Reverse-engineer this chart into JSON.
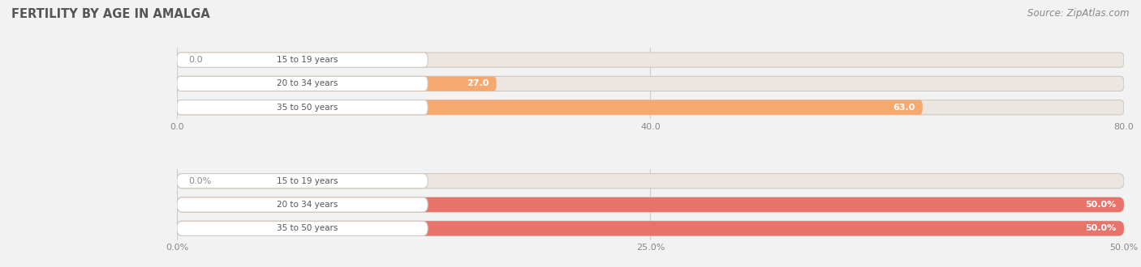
{
  "title": "FERTILITY BY AGE IN AMALGA",
  "source": "Source: ZipAtlas.com",
  "background_color": "#f2f2f2",
  "top_chart": {
    "categories": [
      "15 to 19 years",
      "20 to 34 years",
      "35 to 50 years"
    ],
    "values": [
      0.0,
      27.0,
      63.0
    ],
    "xlim": [
      0,
      80.0
    ],
    "xticks": [
      0.0,
      40.0,
      80.0
    ],
    "xtick_labels": [
      "0.0",
      "40.0",
      "80.0"
    ],
    "bar_color": "#f5a96e",
    "bar_bg_color": "#ece6e0",
    "label_bg": "#ffffff",
    "label_color": "#555555",
    "value_color_inside": "#ffffff",
    "value_color_outside": "#888888",
    "bar_height": 0.62
  },
  "bottom_chart": {
    "categories": [
      "15 to 19 years",
      "20 to 34 years",
      "35 to 50 years"
    ],
    "values": [
      0.0,
      50.0,
      50.0
    ],
    "xlim": [
      0,
      50.0
    ],
    "xticks": [
      0.0,
      25.0,
      50.0
    ],
    "xtick_labels": [
      "0.0%",
      "25.0%",
      "50.0%"
    ],
    "bar_color": "#e8736a",
    "bar_bg_color": "#ece6e0",
    "label_bg": "#ffffff",
    "label_color": "#555555",
    "value_color_inside": "#ffffff",
    "value_color_outside": "#888888",
    "bar_height": 0.62
  }
}
